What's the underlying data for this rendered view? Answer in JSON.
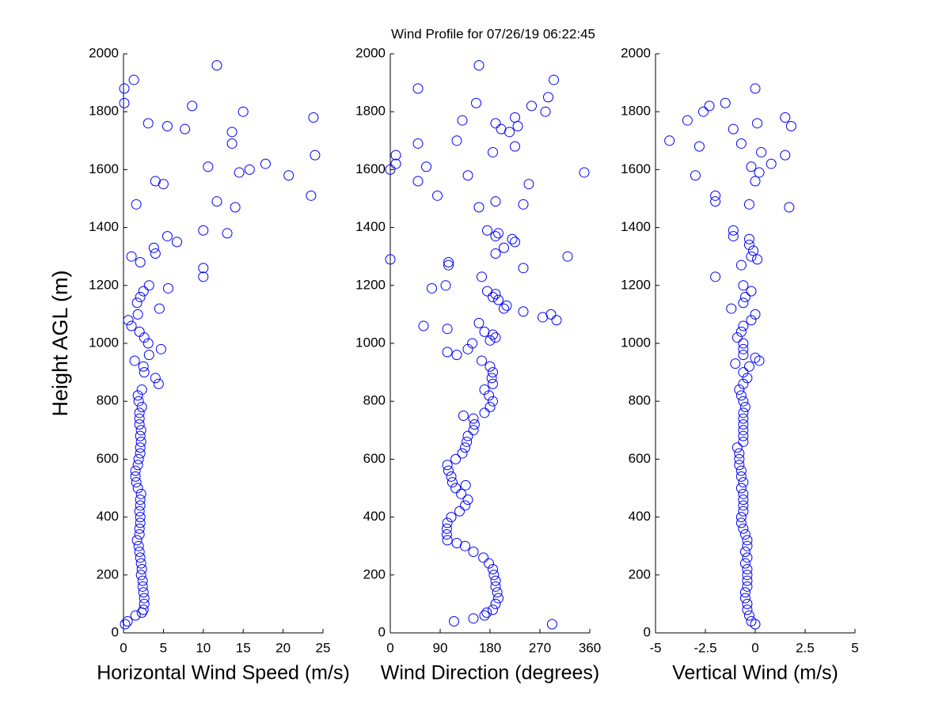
{
  "chart_data": [
    {
      "type": "scatter",
      "title": "Wind Profile for  07/26/19 06:22:45",
      "xlabel": "Horizontal Wind Speed (m/s)",
      "ylabel": "Height AGL (m)",
      "color": "#0000ff",
      "xlim": [
        0,
        25
      ],
      "xticks": [
        0,
        5,
        10,
        15,
        20,
        25
      ],
      "ylim": [
        0,
        2000
      ],
      "yticks": [
        0,
        200,
        400,
        600,
        800,
        1000,
        1200,
        1400,
        1600,
        1800,
        2000
      ],
      "x": [
        0.2,
        0.5,
        1.5,
        2.3,
        2.5,
        2.6,
        2.6,
        2.5,
        2.4,
        2.4,
        2.2,
        2.3,
        2.2,
        2.1,
        2.0,
        1.9,
        1.7,
        2.0,
        2.0,
        2.1,
        2.1,
        2.0,
        2.1,
        2.1,
        2.2,
        1.8,
        1.6,
        1.5,
        1.5,
        1.8,
        1.9,
        2.1,
        2.1,
        2.2,
        2.1,
        2.2,
        2.0,
        2.0,
        2.0,
        2.3,
        1.9,
        1.8,
        2.3,
        4.4,
        4.0,
        2.6,
        2.5,
        1.4,
        3.2,
        4.7,
        3.1,
        2.6,
        2.0,
        1.0,
        0.6,
        1.8,
        4.5,
        1.7,
        2.1,
        2.5,
        5.6,
        3.2,
        10,
        10,
        2.1,
        1.0,
        4.0,
        3.8,
        6.7,
        5.5,
        13,
        10,
        14,
        1.6,
        11.7,
        23.5,
        5,
        4,
        20.7,
        14.5,
        15.8,
        10.6,
        17.8,
        24,
        13.6,
        13.6,
        7.7,
        5.5,
        3.1,
        23.8,
        15,
        8.6,
        0.1,
        0.1,
        1.3,
        11.7
      ],
      "y": [
        30,
        40,
        60,
        70,
        80,
        100,
        120,
        140,
        160,
        180,
        200,
        220,
        240,
        260,
        280,
        300,
        320,
        340,
        360,
        380,
        400,
        420,
        440,
        460,
        480,
        500,
        520,
        540,
        560,
        580,
        600,
        620,
        640,
        660,
        680,
        700,
        720,
        740,
        760,
        780,
        800,
        820,
        840,
        860,
        880,
        900,
        920,
        940,
        960,
        980,
        1000,
        1020,
        1040,
        1060,
        1080,
        1100,
        1120,
        1140,
        1160,
        1180,
        1190,
        1200,
        1230,
        1260,
        1280,
        1300,
        1310,
        1330,
        1350,
        1370,
        1380,
        1390,
        1470,
        1480,
        1490,
        1510,
        1550,
        1560,
        1580,
        1590,
        1600,
        1610,
        1620,
        1650,
        1690,
        1730,
        1740,
        1750,
        1760,
        1780,
        1800,
        1820,
        1830,
        1880,
        1910,
        1960
      ]
    },
    {
      "type": "scatter",
      "xlabel": "Wind Direction (degrees)",
      "color": "#0000ff",
      "xlim": [
        0,
        360
      ],
      "xticks": [
        0,
        90,
        180,
        270,
        360
      ],
      "ylim": [
        0,
        2000
      ],
      "yticks": [
        0,
        200,
        400,
        600,
        800,
        1000,
        1200,
        1400,
        1600,
        1800,
        2000
      ],
      "x": [
        292,
        115,
        150,
        170,
        174,
        185,
        190,
        195,
        193,
        190,
        190,
        187,
        185,
        178,
        168,
        150,
        135,
        120,
        103,
        102,
        102,
        103,
        110,
        125,
        135,
        140,
        128,
        118,
        136,
        112,
        110,
        105,
        103,
        118,
        130,
        135,
        138,
        140,
        150,
        152,
        150,
        132,
        170,
        180,
        185,
        178,
        170,
        185,
        183,
        185,
        180,
        165,
        120,
        103,
        140,
        148,
        180,
        190,
        185,
        170,
        103,
        60,
        160,
        300,
        275,
        290,
        240,
        205,
        210,
        195,
        185,
        190,
        175,
        75,
        100,
        165,
        240,
        105,
        105,
        0,
        320,
        190,
        205,
        225,
        220,
        190,
        195,
        175,
        160,
        240,
        190,
        85,
        250,
        50,
        140,
        350,
        0,
        65,
        10,
        10,
        185,
        225,
        50,
        120,
        215,
        200,
        230,
        190,
        130,
        225,
        280,
        255,
        155,
        285,
        50,
        295,
        160
      ],
      "y": [
        30,
        40,
        50,
        60,
        70,
        80,
        100,
        120,
        140,
        160,
        180,
        200,
        220,
        240,
        260,
        280,
        300,
        310,
        320,
        340,
        360,
        380,
        400,
        420,
        440,
        460,
        480,
        500,
        510,
        520,
        540,
        560,
        580,
        600,
        620,
        640,
        660,
        680,
        700,
        720,
        740,
        750,
        760,
        780,
        800,
        820,
        840,
        860,
        880,
        900,
        920,
        940,
        960,
        970,
        980,
        1000,
        1010,
        1020,
        1030,
        1040,
        1050,
        1060,
        1070,
        1080,
        1090,
        1100,
        1110,
        1120,
        1130,
        1150,
        1160,
        1170,
        1180,
        1190,
        1200,
        1230,
        1260,
        1270,
        1280,
        1290,
        1300,
        1310,
        1330,
        1350,
        1360,
        1370,
        1380,
        1390,
        1470,
        1480,
        1490,
        1510,
        1550,
        1560,
        1580,
        1590,
        1600,
        1610,
        1620,
        1650,
        1660,
        1680,
        1690,
        1700,
        1730,
        1740,
        1750,
        1760,
        1770,
        1780,
        1800,
        1820,
        1830,
        1850,
        1880,
        1910,
        1960
      ]
    },
    {
      "type": "scatter",
      "xlabel": "Vertical Wind (m/s)",
      "color": "#0000ff",
      "xlim": [
        -5,
        5
      ],
      "xticks": [
        -5,
        -2.5,
        0,
        2.5,
        5
      ],
      "ylim": [
        0,
        2000
      ],
      "yticks": [
        0,
        200,
        400,
        600,
        800,
        1000,
        1200,
        1400,
        1600,
        1800,
        2000
      ],
      "x": [
        0,
        -0.2,
        -0.3,
        -0.4,
        -0.4,
        -0.5,
        -0.5,
        -0.4,
        -0.4,
        -0.4,
        -0.4,
        -0.5,
        -0.4,
        -0.5,
        -0.4,
        -0.4,
        -0.5,
        -0.6,
        -0.7,
        -0.7,
        -0.6,
        -0.6,
        -0.6,
        -0.6,
        -0.7,
        -0.6,
        -0.7,
        -0.7,
        -0.8,
        -0.8,
        -0.8,
        -0.9,
        -0.6,
        -0.6,
        -0.6,
        -0.6,
        -0.6,
        -0.6,
        -0.5,
        -0.6,
        -0.7,
        -0.8,
        -0.6,
        -0.4,
        -0.6,
        -0.3,
        -1.0,
        0.2,
        0,
        -0.6,
        -0.6,
        -0.6,
        -0.9,
        -0.7,
        -0.6,
        -0.2,
        0,
        -1.2,
        -0.6,
        -0.5,
        -0.2,
        -0.6,
        -2,
        -0.7,
        0.1,
        -0.2,
        -0.1,
        -0.3,
        -0.3,
        -1.1,
        -1.1,
        1.7,
        -0.3,
        -2,
        -2,
        0,
        -3,
        0.2,
        -0.2,
        0.8,
        1.5,
        0.3,
        -2.8,
        -0.7,
        -4.3,
        -1.1,
        1.8,
        0.1,
        -3.4,
        1.5,
        -2.6,
        -2.3,
        -1.5,
        0
      ],
      "y": [
        30,
        40,
        60,
        80,
        100,
        120,
        140,
        160,
        180,
        200,
        220,
        240,
        260,
        280,
        300,
        320,
        340,
        360,
        380,
        400,
        420,
        440,
        460,
        480,
        500,
        520,
        540,
        560,
        580,
        600,
        620,
        640,
        660,
        680,
        700,
        720,
        740,
        760,
        780,
        800,
        820,
        840,
        860,
        880,
        900,
        920,
        930,
        940,
        950,
        960,
        980,
        1000,
        1020,
        1040,
        1060,
        1080,
        1100,
        1120,
        1140,
        1160,
        1180,
        1200,
        1230,
        1270,
        1290,
        1300,
        1320,
        1340,
        1360,
        1370,
        1390,
        1470,
        1480,
        1490,
        1510,
        1560,
        1580,
        1590,
        1610,
        1620,
        1650,
        1660,
        1680,
        1690,
        1700,
        1740,
        1750,
        1760,
        1770,
        1780,
        1800,
        1820,
        1830,
        1880
      ]
    }
  ]
}
